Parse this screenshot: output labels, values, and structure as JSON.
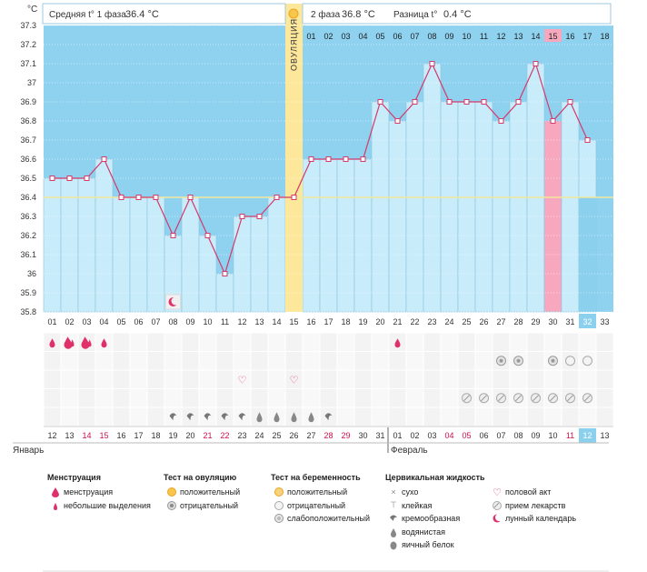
{
  "header": {
    "unit": "°C",
    "phase1_label": "Средняя t° 1 фаза",
    "phase1_value": "36.4 °C",
    "phase2_label": "2 фаза",
    "phase2_value": "36.8 °C",
    "diff_label": "Разница t°",
    "diff_value": "0.4 °C"
  },
  "ovulation_label": "ОВУЛЯЦИЯ",
  "chart_data": {
    "type": "line",
    "ylim": [
      35.8,
      37.3
    ],
    "yticks": [
      "35.8",
      "35.9",
      "36",
      "36.1",
      "36.2",
      "36.3",
      "36.4",
      "36.5",
      "36.6",
      "36.7",
      "36.8",
      "36.9",
      "37",
      "37.1",
      "37.2",
      "37.3"
    ],
    "cycle_days": [
      "01",
      "02",
      "03",
      "04",
      "05",
      "06",
      "07",
      "08",
      "09",
      "10",
      "11",
      "12",
      "13",
      "14",
      "15",
      "16",
      "17",
      "18",
      "19",
      "20",
      "21",
      "22",
      "23",
      "24",
      "25",
      "26",
      "27",
      "28",
      "29",
      "30",
      "31",
      "32",
      "33"
    ],
    "calendar_days": [
      "12",
      "13",
      "14",
      "15",
      "16",
      "17",
      "18",
      "19",
      "20",
      "21",
      "22",
      "23",
      "24",
      "25",
      "26",
      "27",
      "28",
      "29",
      "30",
      "31",
      "01",
      "02",
      "03",
      "04",
      "05",
      "06",
      "07",
      "08",
      "09",
      "10",
      "11",
      "12",
      "13"
    ],
    "calendar_red": [
      2,
      3,
      9,
      10,
      16,
      17,
      23,
      24,
      30
    ],
    "month_labels": [
      "Январь",
      "Февраль"
    ],
    "current_day": 32,
    "ovulation_day": 15,
    "coverline": 36.4,
    "series": [
      {
        "values": [
          36.5,
          36.5,
          36.5,
          36.6,
          36.4,
          36.4,
          36.4,
          36.2,
          36.4,
          36.2,
          36.0,
          36.3,
          36.3,
          36.4,
          36.4,
          36.6,
          36.6,
          36.6,
          36.6,
          36.9,
          36.8,
          36.9,
          37.1,
          36.9,
          36.9,
          36.9,
          36.8,
          36.9,
          37.1,
          36.8,
          36.9,
          36.7
        ]
      }
    ],
    "phase2_day_numbers": [
      "01",
      "02",
      "03",
      "04",
      "05",
      "06",
      "07",
      "08",
      "09",
      "10",
      "11",
      "12",
      "13",
      "14",
      "15",
      "16",
      "17",
      "18"
    ],
    "highlight_phase2_day": 15,
    "rows": {
      "menstruation": {
        "1": "drop-small",
        "2": "drop-big",
        "3": "drop-big",
        "4": "drop-small",
        "21": "drop-small"
      },
      "ovulation_test": {
        "27": "test-neg",
        "28": "test-neg",
        "30": "test-neg",
        "31": "preg-neg",
        "32": "preg-neg"
      },
      "intercourse": {
        "12": "heart",
        "15": "heart"
      },
      "pills": {
        "25": "pill",
        "26": "pill",
        "27": "pill",
        "28": "pill",
        "29": "pill",
        "30": "pill",
        "31": "pill",
        "32": "pill"
      },
      "fluid": {
        "8": "cream",
        "9": "cream",
        "10": "cream",
        "11": "cream",
        "12": "cream",
        "13": "watery",
        "14": "watery",
        "15": "watery",
        "16": "watery",
        "17": "cream"
      },
      "lunar": {
        "8": "moon"
      }
    }
  },
  "legend": {
    "menstruation": {
      "title": "Менструация",
      "items": [
        "менструация",
        "небольшие выделения"
      ]
    },
    "ovulation_test": {
      "title": "Тест на овуляцию",
      "items": [
        "положительный",
        "отрицательный"
      ]
    },
    "pregnancy_test": {
      "title": "Тест на беременность",
      "items": [
        "положительный",
        "отрицательный",
        "слабоположительный"
      ]
    },
    "cervical": {
      "title": "Цервикальная жидкость",
      "items": [
        "сухо",
        "клейкая",
        "кремообразная",
        "водянистая",
        "яичный белок"
      ]
    },
    "other": {
      "items": [
        "половой акт",
        "прием лекарств",
        "лунный календарь"
      ]
    }
  },
  "colors": {
    "sky": "#8ed2f0",
    "column": "#c9ecfb",
    "column_border": "#8cc4dc",
    "ovulation": "#fde79a",
    "line": "#d43a6a",
    "coverline": "#f2e89a",
    "highlight": "#f7a8bf",
    "current": "#8bd1ee"
  }
}
